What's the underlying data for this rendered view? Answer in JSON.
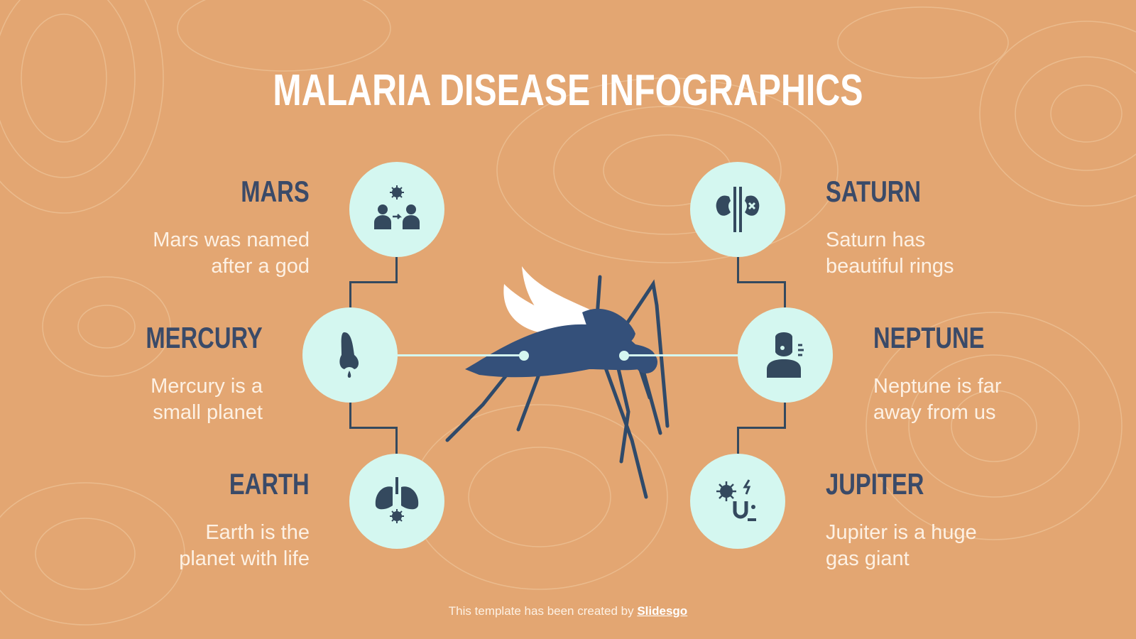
{
  "title": "MALARIA DISEASE INFOGRAPHICS",
  "items": [
    {
      "heading": "MARS",
      "text_1": "Mars was named",
      "text_2": "after a god",
      "icon": "transmission-icon"
    },
    {
      "heading": "MERCURY",
      "text_1": "Mercury is a",
      "text_2": "small planet",
      "icon": "runny-nose-icon"
    },
    {
      "heading": "EARTH",
      "text_1": "Earth is the",
      "text_2": "planet with life",
      "icon": "lungs-virus-icon"
    },
    {
      "heading": "SATURN",
      "text_1": "Saturn has",
      "text_2": "beautiful rings",
      "icon": "kidney-failure-icon"
    },
    {
      "heading": "NEPTUNE",
      "text_1": "Neptune is far",
      "text_2": "away from us",
      "icon": "sick-person-icon"
    },
    {
      "heading": "JUPITER",
      "text_1": "Jupiter is a huge",
      "text_2": "gas giant",
      "icon": "germ-digestive-icon"
    }
  ],
  "footer": {
    "text": "This template has been created by ",
    "link": "Slidesgo"
  },
  "colors": {
    "background": "#e3a672",
    "circle": "#d4f7f0",
    "dark": "#34495e",
    "heading": "#3a4a68"
  }
}
